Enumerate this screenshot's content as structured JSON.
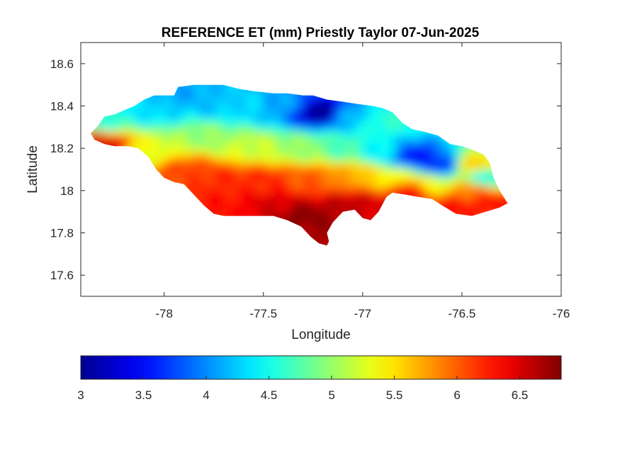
{
  "figure": {
    "title": "REFERENCE ET (mm) Priestly Taylor 07-Jun-2025"
  },
  "chart_data": {
    "type": "heatmap",
    "title": "REFERENCE ET (mm) Priestly Taylor 07-Jun-2025",
    "xlabel": "Longitude",
    "ylabel": "Latitude",
    "xlim": [
      -78.42,
      -76
    ],
    "ylim": [
      17.5,
      18.7
    ],
    "xticks": [
      -78,
      -77.5,
      -77,
      -76.5,
      -76
    ],
    "xtick_labels": [
      "-78",
      "-77.5",
      "-77",
      "-76.5",
      "-76"
    ],
    "yticks": [
      17.6,
      17.8,
      18,
      18.2,
      18.4,
      18.6
    ],
    "ytick_labels": [
      "17.6",
      "17.8",
      "18",
      "18.2",
      "18.4",
      "18.6"
    ],
    "grid": false,
    "colormap": "jet",
    "colorbar": {
      "orientation": "horizontal",
      "location": "below",
      "range": [
        3,
        6.83
      ],
      "ticks": [
        3,
        3.5,
        4,
        4.5,
        5,
        5.5,
        6,
        6.5
      ],
      "tick_labels": [
        "3",
        "3.5",
        "4",
        "4.5",
        "5",
        "5.5",
        "6",
        "6.5"
      ]
    },
    "colormap_stops": [
      "#00008f",
      "#0000ff",
      "#00ffff",
      "#ffff00",
      "#ff0000",
      "#800000"
    ],
    "region_outline": [
      [
        -78.37,
        18.27
      ],
      [
        -78.33,
        18.31
      ],
      [
        -78.3,
        18.35
      ],
      [
        -78.25,
        18.36
      ],
      [
        -78.2,
        18.38
      ],
      [
        -78.15,
        18.4
      ],
      [
        -78.1,
        18.43
      ],
      [
        -78.05,
        18.45
      ],
      [
        -78.0,
        18.45
      ],
      [
        -77.95,
        18.45
      ],
      [
        -77.93,
        18.49
      ],
      [
        -77.85,
        18.5
      ],
      [
        -77.78,
        18.5
      ],
      [
        -77.7,
        18.5
      ],
      [
        -77.62,
        18.48
      ],
      [
        -77.55,
        18.47
      ],
      [
        -77.45,
        18.46
      ],
      [
        -77.38,
        18.46
      ],
      [
        -77.3,
        18.45
      ],
      [
        -77.25,
        18.45
      ],
      [
        -77.18,
        18.43
      ],
      [
        -77.1,
        18.42
      ],
      [
        -77.03,
        18.41
      ],
      [
        -76.95,
        18.4
      ],
      [
        -76.9,
        18.39
      ],
      [
        -76.85,
        18.37
      ],
      [
        -76.8,
        18.32
      ],
      [
        -76.75,
        18.29
      ],
      [
        -76.7,
        18.28
      ],
      [
        -76.62,
        18.26
      ],
      [
        -76.56,
        18.22
      ],
      [
        -76.5,
        18.21
      ],
      [
        -76.44,
        18.19
      ],
      [
        -76.39,
        18.17
      ],
      [
        -76.36,
        18.13
      ],
      [
        -76.34,
        18.06
      ],
      [
        -76.31,
        18.0
      ],
      [
        -76.27,
        17.94
      ],
      [
        -76.31,
        17.92
      ],
      [
        -76.38,
        17.9
      ],
      [
        -76.45,
        17.88
      ],
      [
        -76.53,
        17.89
      ],
      [
        -76.6,
        17.93
      ],
      [
        -76.65,
        17.96
      ],
      [
        -76.72,
        17.97
      ],
      [
        -76.78,
        17.98
      ],
      [
        -76.85,
        17.99
      ],
      [
        -76.88,
        17.97
      ],
      [
        -76.92,
        17.9
      ],
      [
        -76.96,
        17.86
      ],
      [
        -77.0,
        17.87
      ],
      [
        -77.04,
        17.91
      ],
      [
        -77.1,
        17.9
      ],
      [
        -77.15,
        17.85
      ],
      [
        -77.18,
        17.8
      ],
      [
        -77.17,
        17.76
      ],
      [
        -77.18,
        17.74
      ],
      [
        -77.22,
        17.75
      ],
      [
        -77.26,
        17.78
      ],
      [
        -77.31,
        17.83
      ],
      [
        -77.38,
        17.86
      ],
      [
        -77.45,
        17.88
      ],
      [
        -77.55,
        17.88
      ],
      [
        -77.63,
        17.88
      ],
      [
        -77.7,
        17.88
      ],
      [
        -77.75,
        17.89
      ],
      [
        -77.8,
        17.93
      ],
      [
        -77.85,
        17.98
      ],
      [
        -77.9,
        18.03
      ],
      [
        -77.95,
        18.04
      ],
      [
        -78.0,
        18.06
      ],
      [
        -78.04,
        18.1
      ],
      [
        -78.08,
        18.16
      ],
      [
        -78.13,
        18.2
      ],
      [
        -78.18,
        18.21
      ],
      [
        -78.25,
        18.21
      ],
      [
        -78.3,
        18.22
      ],
      [
        -78.35,
        18.24
      ]
    ],
    "field_anchors": [
      {
        "lon": -78.3,
        "lat": 18.32,
        "value": 4.6
      },
      {
        "lon": -78.32,
        "lat": 18.23,
        "value": 6.5
      },
      {
        "lon": -78.05,
        "lat": 18.38,
        "value": 4.3
      },
      {
        "lon": -78.05,
        "lat": 18.18,
        "value": 5.3
      },
      {
        "lon": -77.9,
        "lat": 18.45,
        "value": 4.1
      },
      {
        "lon": -77.75,
        "lat": 18.42,
        "value": 4.2
      },
      {
        "lon": -77.6,
        "lat": 18.4,
        "value": 4.3
      },
      {
        "lon": -77.4,
        "lat": 18.4,
        "value": 4.1
      },
      {
        "lon": -77.22,
        "lat": 18.37,
        "value": 3.0
      },
      {
        "lon": -77.05,
        "lat": 18.35,
        "value": 4.2
      },
      {
        "lon": -76.9,
        "lat": 18.33,
        "value": 4.6
      },
      {
        "lon": -77.8,
        "lat": 18.25,
        "value": 5.0
      },
      {
        "lon": -77.55,
        "lat": 18.2,
        "value": 5.2
      },
      {
        "lon": -77.3,
        "lat": 18.2,
        "value": 5.0
      },
      {
        "lon": -77.1,
        "lat": 18.2,
        "value": 4.7
      },
      {
        "lon": -76.9,
        "lat": 18.18,
        "value": 4.4
      },
      {
        "lon": -76.75,
        "lat": 18.16,
        "value": 3.5
      },
      {
        "lon": -76.6,
        "lat": 18.12,
        "value": 3.6
      },
      {
        "lon": -76.45,
        "lat": 18.12,
        "value": 5.6
      },
      {
        "lon": -76.38,
        "lat": 18.06,
        "value": 4.5
      },
      {
        "lon": -77.9,
        "lat": 18.1,
        "value": 6.1
      },
      {
        "lon": -77.7,
        "lat": 18.05,
        "value": 6.2
      },
      {
        "lon": -77.5,
        "lat": 18.05,
        "value": 6.2
      },
      {
        "lon": -77.25,
        "lat": 18.06,
        "value": 6.0
      },
      {
        "lon": -77.05,
        "lat": 18.08,
        "value": 5.7
      },
      {
        "lon": -76.85,
        "lat": 18.06,
        "value": 5.4
      },
      {
        "lon": -76.65,
        "lat": 18.02,
        "value": 5.3
      },
      {
        "lon": -76.45,
        "lat": 18.0,
        "value": 5.9
      },
      {
        "lon": -76.35,
        "lat": 17.95,
        "value": 6.3
      },
      {
        "lon": -77.7,
        "lat": 17.93,
        "value": 6.3
      },
      {
        "lon": -77.45,
        "lat": 17.93,
        "value": 6.5
      },
      {
        "lon": -77.3,
        "lat": 17.88,
        "value": 6.8
      },
      {
        "lon": -77.2,
        "lat": 17.8,
        "value": 6.7
      },
      {
        "lon": -77.05,
        "lat": 17.93,
        "value": 6.6
      },
      {
        "lon": -76.95,
        "lat": 17.92,
        "value": 6.5
      },
      {
        "lon": -76.75,
        "lat": 18.0,
        "value": 6.4
      },
      {
        "lon": -76.55,
        "lat": 17.93,
        "value": 6.3
      }
    ]
  }
}
